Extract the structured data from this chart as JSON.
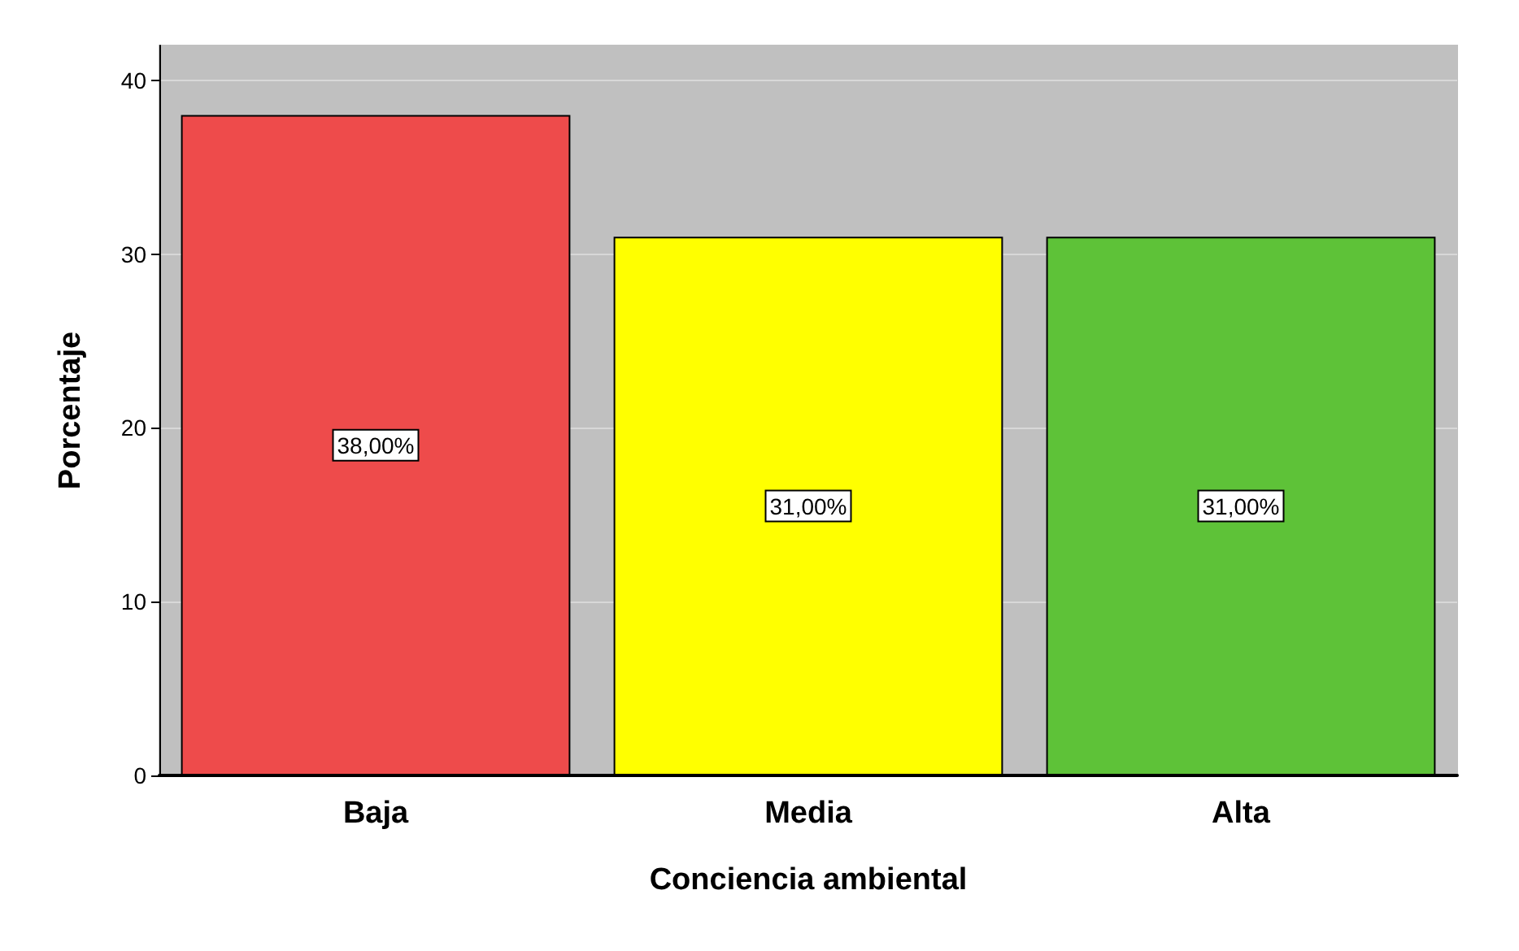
{
  "chart_data": {
    "type": "bar",
    "xlabel": "Conciencia ambiental",
    "ylabel": "Porcentaje",
    "categories": [
      "Baja",
      "Media",
      "Alta"
    ],
    "values": [
      38,
      31,
      31
    ],
    "value_labels": [
      "38,00%",
      "31,00%",
      "31,00%"
    ],
    "colors": [
      "#ee4b4b",
      "#ffff00",
      "#5ec238"
    ],
    "ylim": [
      0,
      42
    ],
    "yticks": [
      0,
      10,
      20,
      30,
      40
    ],
    "grid": "y"
  }
}
